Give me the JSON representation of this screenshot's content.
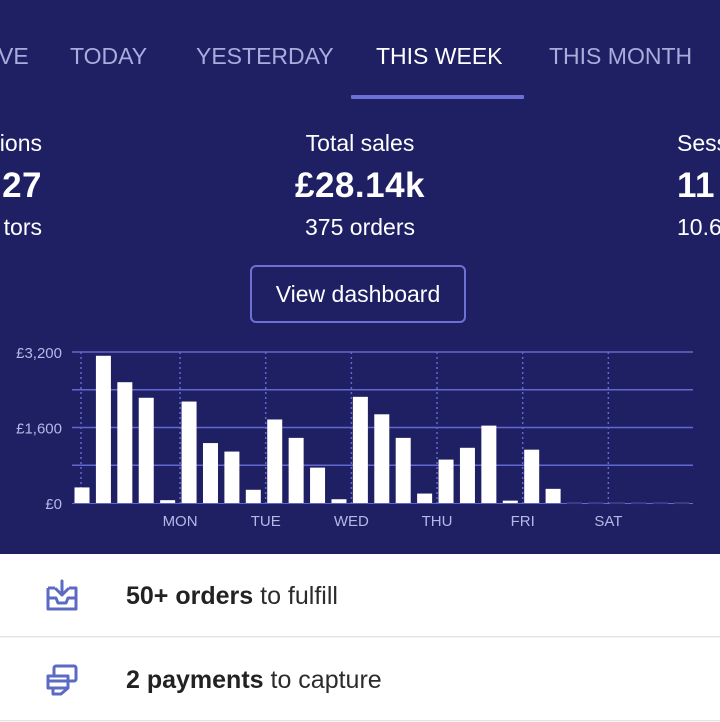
{
  "tabs": [
    {
      "label": "VE",
      "active": false
    },
    {
      "label": "TODAY",
      "active": false
    },
    {
      "label": "YESTERDAY",
      "active": false
    },
    {
      "label": "THIS WEEK",
      "active": true
    },
    {
      "label": "THIS MONTH",
      "active": false
    }
  ],
  "stats": {
    "left": {
      "label": "ions",
      "value": "27",
      "sub": "tors"
    },
    "center": {
      "label": "Total sales",
      "value": "£28.14k",
      "sub": "375 orders"
    },
    "right": {
      "label": "Sess",
      "value": "11",
      "sub": "10.6"
    }
  },
  "dashboard_button": "View dashboard",
  "chart_data": {
    "type": "bar",
    "y_tick_labels": [
      "£3,200",
      "£1,600",
      "£0"
    ],
    "ylim": [
      0,
      3200
    ],
    "x_tick_labels": [
      "MON",
      "TUE",
      "WED",
      "THU",
      "FRI",
      "SAT"
    ],
    "values": [
      330,
      3120,
      2560,
      2230,
      60,
      2150,
      1270,
      1090,
      280,
      1770,
      1380,
      750,
      80,
      2250,
      1880,
      1380,
      200,
      920,
      1170,
      1640,
      50,
      1130,
      300,
      20,
      20,
      20,
      20,
      20,
      20
    ],
    "colors": {
      "bar": "#ffffff",
      "grid": "#6367d0",
      "tick": "#b5b8e6"
    }
  },
  "tasks": [
    {
      "bold": "50+ orders",
      "rest": " to fulfill",
      "icon": "inbox-download-icon"
    },
    {
      "bold": "2 payments",
      "rest": " to capture",
      "icon": "cards-payment-icon"
    }
  ],
  "colors": {
    "header_bg": "#1e2063",
    "accent": "#6d71d6",
    "icon": "#5c6ac4"
  }
}
